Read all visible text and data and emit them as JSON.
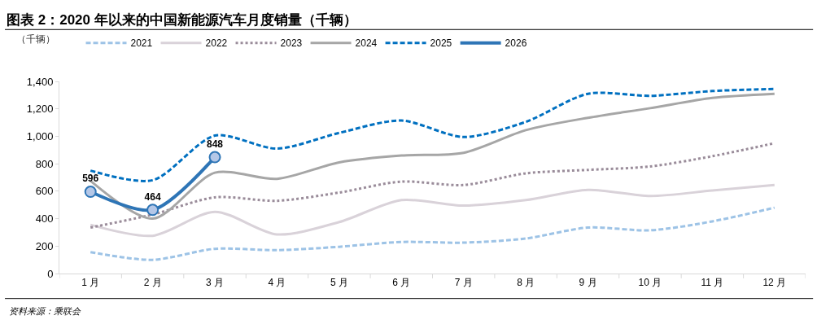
{
  "chart_data": {
    "type": "line",
    "title": "图表 2：2020 年以来的中国新能源汽车月度销量（千辆）",
    "ylabel": "（千辆）",
    "categories": [
      "1 月",
      "2 月",
      "3 月",
      "4 月",
      "5 月",
      "6 月",
      "7 月",
      "8 月",
      "9 月",
      "10 月",
      "11 月",
      "12 月"
    ],
    "series": [
      {
        "name": "2021",
        "color": "#9dc3e6",
        "line_style": "dashed",
        "marker": "none",
        "values": [
          156,
          100,
          180,
          170,
          195,
          230,
          225,
          255,
          335,
          315,
          380,
          480
        ]
      },
      {
        "name": "2022",
        "color": "#d9d2d9",
        "line_style": "solid",
        "marker": "none",
        "values": [
          355,
          275,
          450,
          285,
          375,
          535,
          495,
          535,
          610,
          565,
          605,
          645
        ]
      },
      {
        "name": "2023",
        "color": "#9a8c9a",
        "line_style": "dotted",
        "marker": "none",
        "values": [
          335,
          430,
          555,
          530,
          590,
          670,
          645,
          730,
          755,
          780,
          855,
          950
        ]
      },
      {
        "name": "2024",
        "color": "#a6a6a6",
        "line_style": "solid",
        "marker": "none",
        "values": [
          675,
          400,
          735,
          690,
          810,
          860,
          880,
          1045,
          1135,
          1205,
          1280,
          1310
        ]
      },
      {
        "name": "2025",
        "color": "#0070c0",
        "line_style": "dashed",
        "marker": "none",
        "values": [
          750,
          680,
          1005,
          910,
          1025,
          1115,
          995,
          1105,
          1310,
          1295,
          1330,
          1345
        ]
      },
      {
        "name": "2026",
        "color": "#2e75b6",
        "line_style": "solid",
        "marker": "circle",
        "values": [
          596,
          464,
          848,
          null,
          null,
          null,
          null,
          null,
          null,
          null,
          null,
          null
        ],
        "value_labels": [
          "596",
          "464",
          "848",
          null,
          null,
          null,
          null,
          null,
          null,
          null,
          null,
          null
        ]
      }
    ],
    "ylim": [
      0,
      1400
    ],
    "yticks": [
      {
        "value": 0,
        "label": "0"
      },
      {
        "value": 200,
        "label": "200"
      },
      {
        "value": 400,
        "label": "400"
      },
      {
        "value": 600,
        "label": "600"
      },
      {
        "value": 800,
        "label": "800"
      },
      {
        "value": 1000,
        "label": "1,000"
      },
      {
        "value": 1200,
        "label": "1,200"
      },
      {
        "value": 1400,
        "label": "1,400"
      }
    ],
    "grid": false,
    "legend": "top",
    "annotations": [
      "资料来源：乘联会"
    ]
  }
}
